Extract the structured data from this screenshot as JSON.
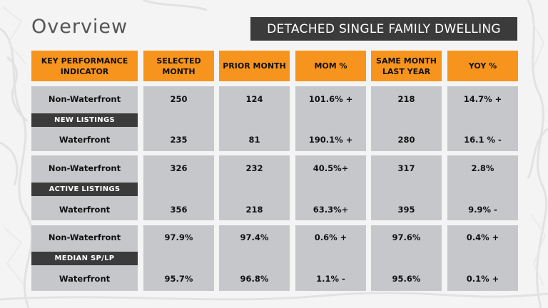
{
  "title": "Overview",
  "banner": "DETACHED SINGLE FAMILY DWELLING",
  "columns": [
    "KEY PERFORMANCE INDICATOR",
    "SELECTED MONTH",
    "PRIOR MONTH",
    "MOM %",
    "SAME MONTH LAST YEAR",
    "YOY %"
  ],
  "colors": {
    "accent": "#f7941d",
    "dark": "#3b3b3b",
    "block": "#c6c7cb"
  },
  "groups": [
    {
      "label": "NEW LISTINGS",
      "rows": [
        {
          "name": "Non-Waterfront",
          "values": [
            "250",
            "124",
            "101.6% +",
            "218",
            "14.7% +"
          ]
        },
        {
          "name": "Waterfront",
          "values": [
            "235",
            "81",
            "190.1% +",
            "280",
            "16.1 % -"
          ]
        }
      ]
    },
    {
      "label": "ACTIVE LISTINGS",
      "rows": [
        {
          "name": "Non-Waterfront",
          "values": [
            "326",
            "232",
            "40.5%+",
            "317",
            "2.8%"
          ]
        },
        {
          "name": "Waterfront",
          "values": [
            "356",
            "218",
            "63.3%+",
            "395",
            "9.9% -"
          ]
        }
      ]
    },
    {
      "label": "MEDIAN SP/LP",
      "rows": [
        {
          "name": "Non-Waterfront",
          "values": [
            "97.9%",
            "97.4%",
            "0.6% +",
            "97.6%",
            "0.4% +"
          ]
        },
        {
          "name": "Waterfront",
          "values": [
            "95.7%",
            "96.8%",
            "1.1% -",
            "95.6%",
            "0.1% +"
          ]
        }
      ]
    }
  ]
}
